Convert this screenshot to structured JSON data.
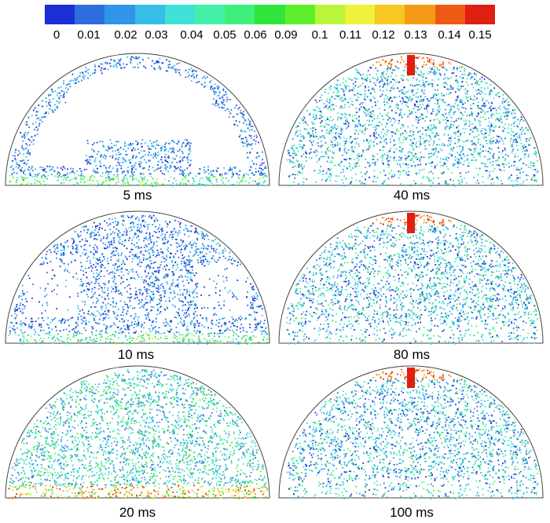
{
  "colorbar": {
    "colors": [
      "#1a2fd6",
      "#2e6de0",
      "#2f95e8",
      "#36bde8",
      "#3fe0d6",
      "#43f0a8",
      "#3ef07a",
      "#30e63c",
      "#5eef2c",
      "#b9f53a",
      "#eef23a",
      "#f6c820",
      "#f59a16",
      "#ef5a12",
      "#e01e12"
    ],
    "labels": [
      "0",
      "0.01",
      "0.02",
      "0.03",
      "0.04",
      "0.05",
      "0.06",
      "0.09",
      "0.1",
      "0.11",
      "0.12",
      "0.13",
      "0.14",
      "0.15"
    ]
  },
  "panels": [
    {
      "caption": "5 ms"
    },
    {
      "caption": "40 ms"
    },
    {
      "caption": "10 ms"
    },
    {
      "caption": "80 ms"
    },
    {
      "caption": "20 ms"
    },
    {
      "caption": "100 ms"
    }
  ]
}
